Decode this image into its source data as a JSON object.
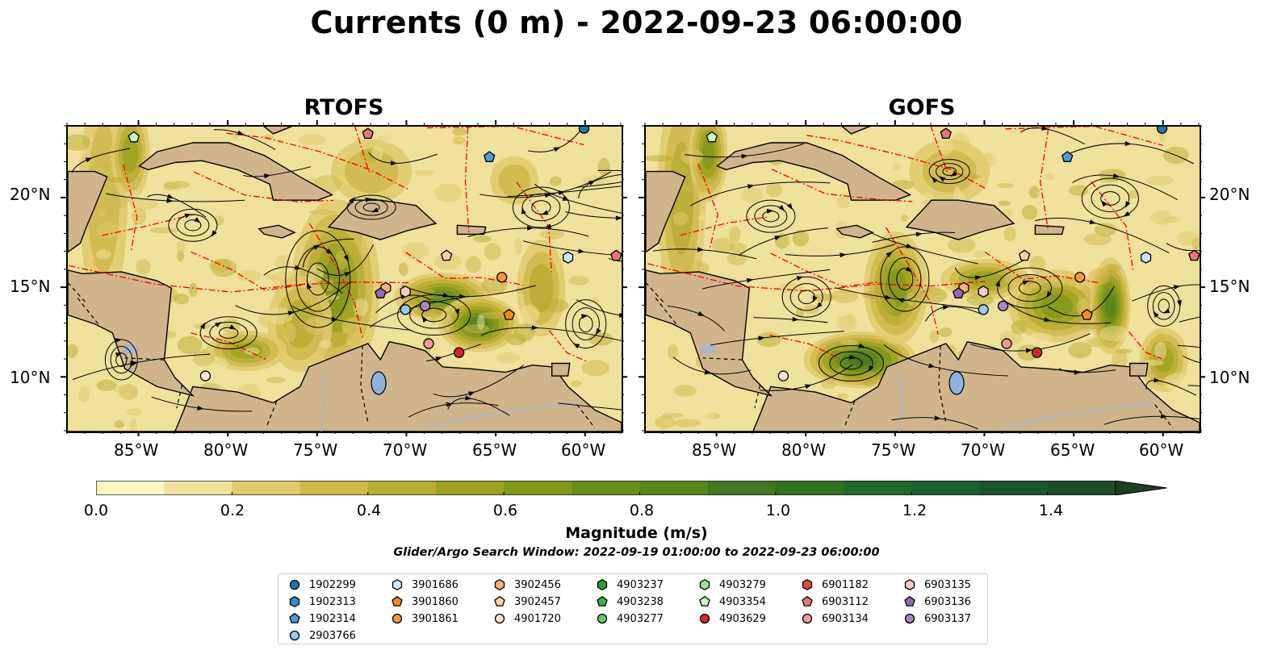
{
  "title": "Currents (0 m) - 2022-09-23 06:00:00",
  "panels": [
    {
      "title": "RTOFS"
    },
    {
      "title": "GOFS"
    }
  ],
  "axes": {
    "lon_labels": [
      "85°W",
      "80°W",
      "75°W",
      "70°W",
      "65°W",
      "60°W"
    ],
    "lat_labels": [
      "20°N",
      "15°N",
      "10°N"
    ],
    "lon_range": [
      -89,
      -58
    ],
    "lat_range": [
      7,
      24
    ]
  },
  "colorbar": {
    "label": "Magnitude (m/s)",
    "ticks": [
      "0.0",
      "0.2",
      "0.4",
      "0.6",
      "0.8",
      "1.0",
      "1.2",
      "1.4"
    ],
    "range": [
      0,
      1.5
    ],
    "colors": [
      "#fdf6c3",
      "#efe09a",
      "#e1c96c",
      "#cfb84b",
      "#b9ac31",
      "#9da21f",
      "#82981a",
      "#6b8e1c",
      "#58861e",
      "#44791f",
      "#30711f",
      "#1f6a2d",
      "#196230",
      "#1a5430",
      "#1c4a2b",
      "#1d3d24"
    ]
  },
  "search_window": "Glider/Argo Search Window: 2022-09-19 01:00:00 to 2022-09-23 06:00:00",
  "legend": [
    {
      "id": "1902299",
      "shape": "circle",
      "color": "#1f77b4"
    },
    {
      "id": "1902313",
      "shape": "hexagon",
      "color": "#3f86c6"
    },
    {
      "id": "1902314",
      "shape": "pentagon",
      "color": "#4f9adf"
    },
    {
      "id": "2903766",
      "shape": "circle",
      "color": "#9ec8ee"
    },
    {
      "id": "3901686",
      "shape": "hexagon",
      "color": "#cfe6fb"
    },
    {
      "id": "3901860",
      "shape": "pentagon",
      "color": "#f28c1a"
    },
    {
      "id": "3901861",
      "shape": "circle",
      "color": "#f7963a"
    },
    {
      "id": "3902456",
      "shape": "hexagon",
      "color": "#f8b27a"
    },
    {
      "id": "3902457",
      "shape": "pentagon",
      "color": "#fcd1a2"
    },
    {
      "id": "4901720",
      "shape": "circle",
      "color": "#fde6cf"
    },
    {
      "id": "4903237",
      "shape": "hexagon",
      "color": "#2f9a3a"
    },
    {
      "id": "4903238",
      "shape": "pentagon",
      "color": "#46ad4a"
    },
    {
      "id": "4903277",
      "shape": "circle",
      "color": "#6cc36a"
    },
    {
      "id": "4903279",
      "shape": "hexagon",
      "color": "#9fe09a"
    },
    {
      "id": "4903354",
      "shape": "pentagon",
      "color": "#c9f5c1"
    },
    {
      "id": "4903629",
      "shape": "circle",
      "color": "#d62728"
    },
    {
      "id": "6901182",
      "shape": "hexagon",
      "color": "#de4c4c"
    },
    {
      "id": "6903112",
      "shape": "pentagon",
      "color": "#ea7474"
    },
    {
      "id": "6903134",
      "shape": "circle",
      "color": "#f29a9a"
    },
    {
      "id": "6903135",
      "shape": "hexagon",
      "color": "#f9c8c6"
    },
    {
      "id": "6903136",
      "shape": "pentagon",
      "color": "#9467bd"
    },
    {
      "id": "6903137",
      "shape": "circle",
      "color": "#a883cc"
    }
  ],
  "floats": [
    {
      "id": "1902299",
      "lon": -60.1,
      "lat": 23.9
    },
    {
      "id": "1902314",
      "lon": -65.4,
      "lat": 22.3
    },
    {
      "id": "4903354",
      "lon": -85.3,
      "lat": 23.4
    },
    {
      "id": "6903112",
      "lon": -72.2,
      "lat": 23.6
    },
    {
      "id": "3901686",
      "lon": -61.0,
      "lat": 16.7
    },
    {
      "id": "6903112",
      "lon": -58.3,
      "lat": 16.8
    },
    {
      "id": "3902457",
      "lon": -67.8,
      "lat": 16.8
    },
    {
      "id": "3901861",
      "lon": -64.7,
      "lat": 15.6
    },
    {
      "id": "3902456",
      "lon": -71.2,
      "lat": 15.0
    },
    {
      "id": "6903135",
      "lon": -70.1,
      "lat": 14.8
    },
    {
      "id": "6903136",
      "lon": -71.5,
      "lat": 14.7
    },
    {
      "id": "2903766",
      "lon": -70.1,
      "lat": 13.8
    },
    {
      "id": "6903137",
      "lon": -69.0,
      "lat": 14.0
    },
    {
      "id": "3901860",
      "lon": -64.3,
      "lat": 13.5
    },
    {
      "id": "6903134",
      "lon": -68.8,
      "lat": 11.9
    },
    {
      "id": "4903629",
      "lon": -67.1,
      "lat": 11.4
    },
    {
      "id": "4901720",
      "lon": -81.3,
      "lat": 10.1
    }
  ]
}
